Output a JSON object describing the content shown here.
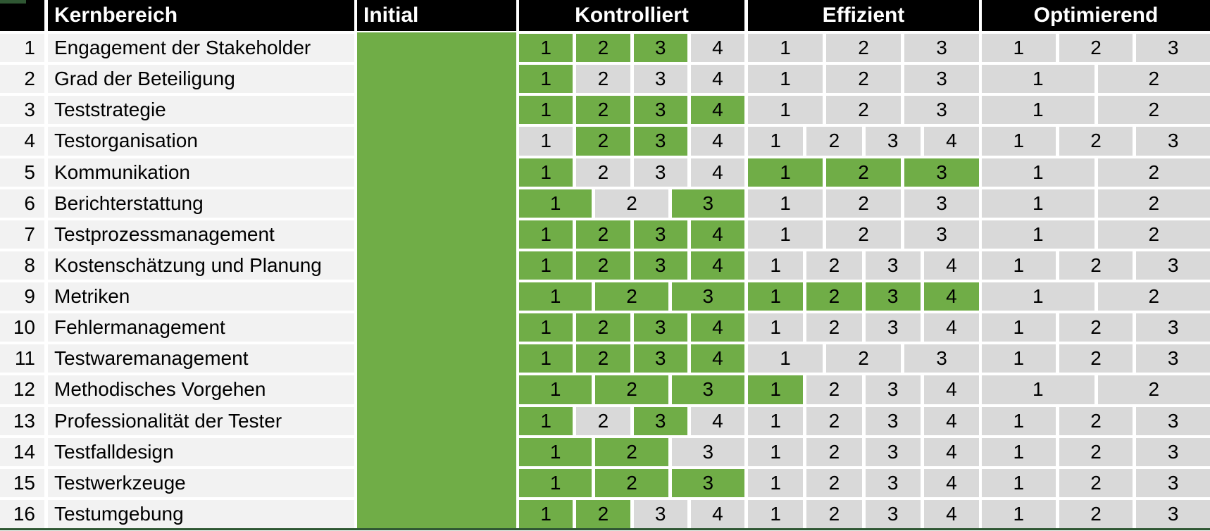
{
  "header": {
    "corner": "",
    "kernbereich": "Kernbereich",
    "initial": "Initial",
    "kontrolliert": "Kontrolliert",
    "effizient": "Effizient",
    "optimierend": "Optimierend"
  },
  "colors": {
    "achieved_green": "#70AD47",
    "pending_gray": "#D9D9D9",
    "row_bg": "#F2F2F2",
    "header_bg": "#000000",
    "header_text": "#FFFFFF",
    "accent_dark": "#2F5733",
    "cell_text": "#000000"
  },
  "rows": [
    {
      "num": "1",
      "label": "Engagement der Stakeholder",
      "kontrolliert": [
        {
          "level": "1",
          "achieved": true
        },
        {
          "level": "2",
          "achieved": true
        },
        {
          "level": "3",
          "achieved": true
        },
        {
          "level": "4",
          "achieved": false
        }
      ],
      "effizient": [
        {
          "level": "1",
          "achieved": false
        },
        {
          "level": "2",
          "achieved": false
        },
        {
          "level": "3",
          "achieved": false
        }
      ],
      "optimierend": [
        {
          "level": "1",
          "achieved": false
        },
        {
          "level": "2",
          "achieved": false
        },
        {
          "level": "3",
          "achieved": false
        }
      ]
    },
    {
      "num": "2",
      "label": "Grad der Beteiligung",
      "kontrolliert": [
        {
          "level": "1",
          "achieved": true
        },
        {
          "level": "2",
          "achieved": false
        },
        {
          "level": "3",
          "achieved": false
        },
        {
          "level": "4",
          "achieved": false
        }
      ],
      "effizient": [
        {
          "level": "1",
          "achieved": false
        },
        {
          "level": "2",
          "achieved": false
        },
        {
          "level": "3",
          "achieved": false
        }
      ],
      "optimierend": [
        {
          "level": "1",
          "achieved": false
        },
        {
          "level": "2",
          "achieved": false
        }
      ]
    },
    {
      "num": "3",
      "label": "Teststrategie",
      "kontrolliert": [
        {
          "level": "1",
          "achieved": true
        },
        {
          "level": "2",
          "achieved": true
        },
        {
          "level": "3",
          "achieved": true
        },
        {
          "level": "4",
          "achieved": true
        }
      ],
      "effizient": [
        {
          "level": "1",
          "achieved": false
        },
        {
          "level": "2",
          "achieved": false
        },
        {
          "level": "3",
          "achieved": false
        }
      ],
      "optimierend": [
        {
          "level": "1",
          "achieved": false
        },
        {
          "level": "2",
          "achieved": false
        }
      ]
    },
    {
      "num": "4",
      "label": "Testorganisation",
      "kontrolliert": [
        {
          "level": "1",
          "achieved": false
        },
        {
          "level": "2",
          "achieved": true
        },
        {
          "level": "3",
          "achieved": true
        },
        {
          "level": "4",
          "achieved": false
        }
      ],
      "effizient": [
        {
          "level": "1",
          "achieved": false
        },
        {
          "level": "2",
          "achieved": false
        },
        {
          "level": "3",
          "achieved": false
        },
        {
          "level": "4",
          "achieved": false
        }
      ],
      "optimierend": [
        {
          "level": "1",
          "achieved": false
        },
        {
          "level": "2",
          "achieved": false
        },
        {
          "level": "3",
          "achieved": false
        }
      ]
    },
    {
      "num": "5",
      "label": "Kommunikation",
      "kontrolliert": [
        {
          "level": "1",
          "achieved": true
        },
        {
          "level": "2",
          "achieved": false
        },
        {
          "level": "3",
          "achieved": false
        },
        {
          "level": "4",
          "achieved": false
        }
      ],
      "effizient": [
        {
          "level": "1",
          "achieved": true
        },
        {
          "level": "2",
          "achieved": true
        },
        {
          "level": "3",
          "achieved": true
        }
      ],
      "optimierend": [
        {
          "level": "1",
          "achieved": false
        },
        {
          "level": "2",
          "achieved": false
        }
      ]
    },
    {
      "num": "6",
      "label": "Berichterstattung",
      "kontrolliert": [
        {
          "level": "1",
          "achieved": true
        },
        {
          "level": "2",
          "achieved": false
        },
        {
          "level": "3",
          "achieved": true
        }
      ],
      "effizient": [
        {
          "level": "1",
          "achieved": false
        },
        {
          "level": "2",
          "achieved": false
        },
        {
          "level": "3",
          "achieved": false
        }
      ],
      "optimierend": [
        {
          "level": "1",
          "achieved": false
        },
        {
          "level": "2",
          "achieved": false
        }
      ]
    },
    {
      "num": "7",
      "label": "Testprozessmanagement",
      "kontrolliert": [
        {
          "level": "1",
          "achieved": true
        },
        {
          "level": "2",
          "achieved": true
        },
        {
          "level": "3",
          "achieved": true
        },
        {
          "level": "4",
          "achieved": true
        }
      ],
      "effizient": [
        {
          "level": "1",
          "achieved": false
        },
        {
          "level": "2",
          "achieved": false
        },
        {
          "level": "3",
          "achieved": false
        }
      ],
      "optimierend": [
        {
          "level": "1",
          "achieved": false
        },
        {
          "level": "2",
          "achieved": false
        }
      ]
    },
    {
      "num": "8",
      "label": "Kostenschätzung und Planung",
      "kontrolliert": [
        {
          "level": "1",
          "achieved": true
        },
        {
          "level": "2",
          "achieved": true
        },
        {
          "level": "3",
          "achieved": true
        },
        {
          "level": "4",
          "achieved": true
        }
      ],
      "effizient": [
        {
          "level": "1",
          "achieved": false
        },
        {
          "level": "2",
          "achieved": false
        },
        {
          "level": "3",
          "achieved": false
        },
        {
          "level": "4",
          "achieved": false
        }
      ],
      "optimierend": [
        {
          "level": "1",
          "achieved": false
        },
        {
          "level": "2",
          "achieved": false
        },
        {
          "level": "3",
          "achieved": false
        }
      ]
    },
    {
      "num": "9",
      "label": "Metriken",
      "kontrolliert": [
        {
          "level": "1",
          "achieved": true
        },
        {
          "level": "2",
          "achieved": true
        },
        {
          "level": "3",
          "achieved": true
        }
      ],
      "effizient": [
        {
          "level": "1",
          "achieved": true
        },
        {
          "level": "2",
          "achieved": true
        },
        {
          "level": "3",
          "achieved": true
        },
        {
          "level": "4",
          "achieved": true
        }
      ],
      "optimierend": [
        {
          "level": "1",
          "achieved": false
        },
        {
          "level": "2",
          "achieved": false
        }
      ]
    },
    {
      "num": "10",
      "label": "Fehlermanagement",
      "kontrolliert": [
        {
          "level": "1",
          "achieved": true
        },
        {
          "level": "2",
          "achieved": true
        },
        {
          "level": "3",
          "achieved": true
        },
        {
          "level": "4",
          "achieved": true
        }
      ],
      "effizient": [
        {
          "level": "1",
          "achieved": false
        },
        {
          "level": "2",
          "achieved": false
        },
        {
          "level": "3",
          "achieved": false
        },
        {
          "level": "4",
          "achieved": false
        }
      ],
      "optimierend": [
        {
          "level": "1",
          "achieved": false
        },
        {
          "level": "2",
          "achieved": false
        },
        {
          "level": "3",
          "achieved": false
        }
      ]
    },
    {
      "num": "11",
      "label": "Testwaremanagement",
      "kontrolliert": [
        {
          "level": "1",
          "achieved": true
        },
        {
          "level": "2",
          "achieved": true
        },
        {
          "level": "3",
          "achieved": true
        },
        {
          "level": "4",
          "achieved": true
        }
      ],
      "effizient": [
        {
          "level": "1",
          "achieved": false
        },
        {
          "level": "2",
          "achieved": false
        },
        {
          "level": "3",
          "achieved": false
        }
      ],
      "optimierend": [
        {
          "level": "1",
          "achieved": false
        },
        {
          "level": "2",
          "achieved": false
        },
        {
          "level": "3",
          "achieved": false
        }
      ]
    },
    {
      "num": "12",
      "label": "Methodisches Vorgehen",
      "kontrolliert": [
        {
          "level": "1",
          "achieved": true
        },
        {
          "level": "2",
          "achieved": true
        },
        {
          "level": "3",
          "achieved": true
        }
      ],
      "effizient": [
        {
          "level": "1",
          "achieved": true
        },
        {
          "level": "2",
          "achieved": false
        },
        {
          "level": "3",
          "achieved": false
        },
        {
          "level": "4",
          "achieved": false
        }
      ],
      "optimierend": [
        {
          "level": "1",
          "achieved": false
        },
        {
          "level": "2",
          "achieved": false
        }
      ]
    },
    {
      "num": "13",
      "label": "Professionalität der Tester",
      "kontrolliert": [
        {
          "level": "1",
          "achieved": true
        },
        {
          "level": "2",
          "achieved": false
        },
        {
          "level": "3",
          "achieved": true
        },
        {
          "level": "4",
          "achieved": false
        }
      ],
      "effizient": [
        {
          "level": "1",
          "achieved": false
        },
        {
          "level": "2",
          "achieved": false
        },
        {
          "level": "3",
          "achieved": false
        },
        {
          "level": "4",
          "achieved": false
        }
      ],
      "optimierend": [
        {
          "level": "1",
          "achieved": false
        },
        {
          "level": "2",
          "achieved": false
        },
        {
          "level": "3",
          "achieved": false
        }
      ]
    },
    {
      "num": "14",
      "label": "Testfalldesign",
      "kontrolliert": [
        {
          "level": "1",
          "achieved": true
        },
        {
          "level": "2",
          "achieved": true
        },
        {
          "level": "3",
          "achieved": false
        }
      ],
      "effizient": [
        {
          "level": "1",
          "achieved": false
        },
        {
          "level": "2",
          "achieved": false
        },
        {
          "level": "3",
          "achieved": false
        },
        {
          "level": "4",
          "achieved": false
        }
      ],
      "optimierend": [
        {
          "level": "1",
          "achieved": false
        },
        {
          "level": "2",
          "achieved": false
        },
        {
          "level": "3",
          "achieved": false
        }
      ]
    },
    {
      "num": "15",
      "label": "Testwerkzeuge",
      "kontrolliert": [
        {
          "level": "1",
          "achieved": true
        },
        {
          "level": "2",
          "achieved": true
        },
        {
          "level": "3",
          "achieved": true
        }
      ],
      "effizient": [
        {
          "level": "1",
          "achieved": false
        },
        {
          "level": "2",
          "achieved": false
        },
        {
          "level": "3",
          "achieved": false
        },
        {
          "level": "4",
          "achieved": false
        }
      ],
      "optimierend": [
        {
          "level": "1",
          "achieved": false
        },
        {
          "level": "2",
          "achieved": false
        },
        {
          "level": "3",
          "achieved": false
        }
      ]
    },
    {
      "num": "16",
      "label": "Testumgebung",
      "kontrolliert": [
        {
          "level": "1",
          "achieved": true
        },
        {
          "level": "2",
          "achieved": true
        },
        {
          "level": "3",
          "achieved": false
        },
        {
          "level": "4",
          "achieved": false
        }
      ],
      "effizient": [
        {
          "level": "1",
          "achieved": false
        },
        {
          "level": "2",
          "achieved": false
        },
        {
          "level": "3",
          "achieved": false
        },
        {
          "level": "4",
          "achieved": false
        }
      ],
      "optimierend": [
        {
          "level": "1",
          "achieved": false
        },
        {
          "level": "2",
          "achieved": false
        },
        {
          "level": "3",
          "achieved": false
        }
      ]
    }
  ]
}
